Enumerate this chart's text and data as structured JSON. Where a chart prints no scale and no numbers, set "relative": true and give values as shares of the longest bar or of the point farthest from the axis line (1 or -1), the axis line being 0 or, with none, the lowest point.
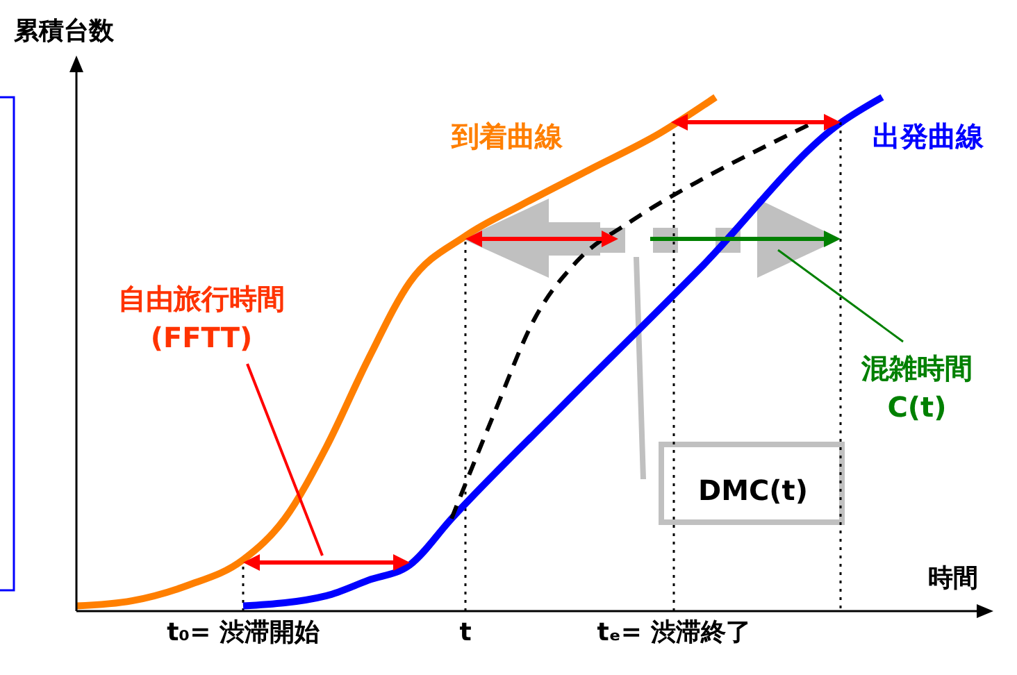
{
  "chart_data": {
    "type": "line",
    "relative": true,
    "ylabel": "累積台数",
    "xlabel": "時間",
    "categories": [
      null,
      null,
      null,
      null,
      null,
      null,
      null,
      null,
      null,
      null,
      null,
      null,
      "t₀= 渋滞開始",
      null,
      null,
      null,
      null,
      null,
      null,
      null,
      null,
      null,
      null,
      null,
      null,
      null,
      null,
      null,
      "t",
      null,
      null,
      null,
      null,
      null,
      null,
      null,
      null,
      null,
      null,
      null,
      null,
      null,
      null,
      "tₑ= 渋滞終了",
      null,
      null,
      null,
      null,
      null,
      null,
      null,
      null,
      null,
      null,
      null,
      null,
      null,
      null,
      null,
      null,
      null,
      null,
      null,
      null,
      null,
      null
    ],
    "series": [
      {
        "name": "到着曲線",
        "color": "#ff7f00",
        "values": [
          0.01,
          null,
          null,
          null,
          0.02,
          null,
          null,
          null,
          0.05,
          null,
          null,
          null,
          0.1,
          null,
          null,
          0.18,
          null,
          null,
          0.32,
          null,
          null,
          0.49,
          null,
          null,
          0.64,
          null,
          null,
          null,
          0.73,
          null,
          null,
          null,
          0.79,
          null,
          null,
          null,
          null,
          0.86,
          null,
          null,
          null,
          null,
          0.93,
          null,
          null,
          null,
          1.0,
          null,
          null,
          null,
          null,
          null,
          null,
          null,
          null,
          null,
          null,
          null,
          null,
          null,
          null,
          null,
          null,
          null,
          null,
          null
        ]
      },
      {
        "name": "出発曲線",
        "color": "#0000ff",
        "values": [
          null,
          null,
          null,
          null,
          null,
          null,
          null,
          null,
          null,
          null,
          null,
          null,
          0.01,
          null,
          null,
          null,
          null,
          null,
          0.03,
          null,
          null,
          0.06,
          null,
          null,
          0.09,
          null,
          null,
          0.18,
          null,
          null,
          null,
          null,
          null,
          null,
          null,
          0.4,
          null,
          null,
          null,
          null,
          null,
          null,
          null,
          null,
          null,
          0.67,
          null,
          null,
          null,
          null,
          null,
          null,
          null,
          null,
          null,
          0.95,
          null,
          null,
          1.0,
          null,
          null,
          null,
          null,
          null,
          null,
          null
        ]
      },
      {
        "color": "#000000",
        "line_style": "dashed",
        "values": [
          null,
          null,
          null,
          null,
          null,
          null,
          null,
          null,
          null,
          null,
          null,
          null,
          null,
          null,
          null,
          null,
          null,
          null,
          null,
          null,
          null,
          null,
          null,
          null,
          null,
          null,
          null,
          0.18,
          null,
          null,
          0.38,
          null,
          null,
          0.57,
          null,
          null,
          0.68,
          null,
          null,
          null,
          0.76,
          null,
          null,
          null,
          null,
          0.84,
          null,
          null,
          null,
          null,
          0.91,
          null,
          null,
          0.95,
          null,
          null,
          null,
          null,
          null,
          null,
          null,
          null,
          null,
          null,
          null,
          null
        ]
      }
    ],
    "ref_lines": [
      {
        "axis": "x",
        "value": "t₀= 渋滞開始",
        "line_style": "dotted"
      },
      {
        "axis": "x",
        "value": "t",
        "line_style": "dotted"
      },
      {
        "axis": "x",
        "value": "tₑ= 渋滞終了",
        "line_style": "dotted"
      }
    ],
    "annotations": [
      "自由旅行時間\n(FFTT)",
      "混雑時間\nC(t)",
      "DMC(t)"
    ],
    "legend": false,
    "marker": "none"
  }
}
